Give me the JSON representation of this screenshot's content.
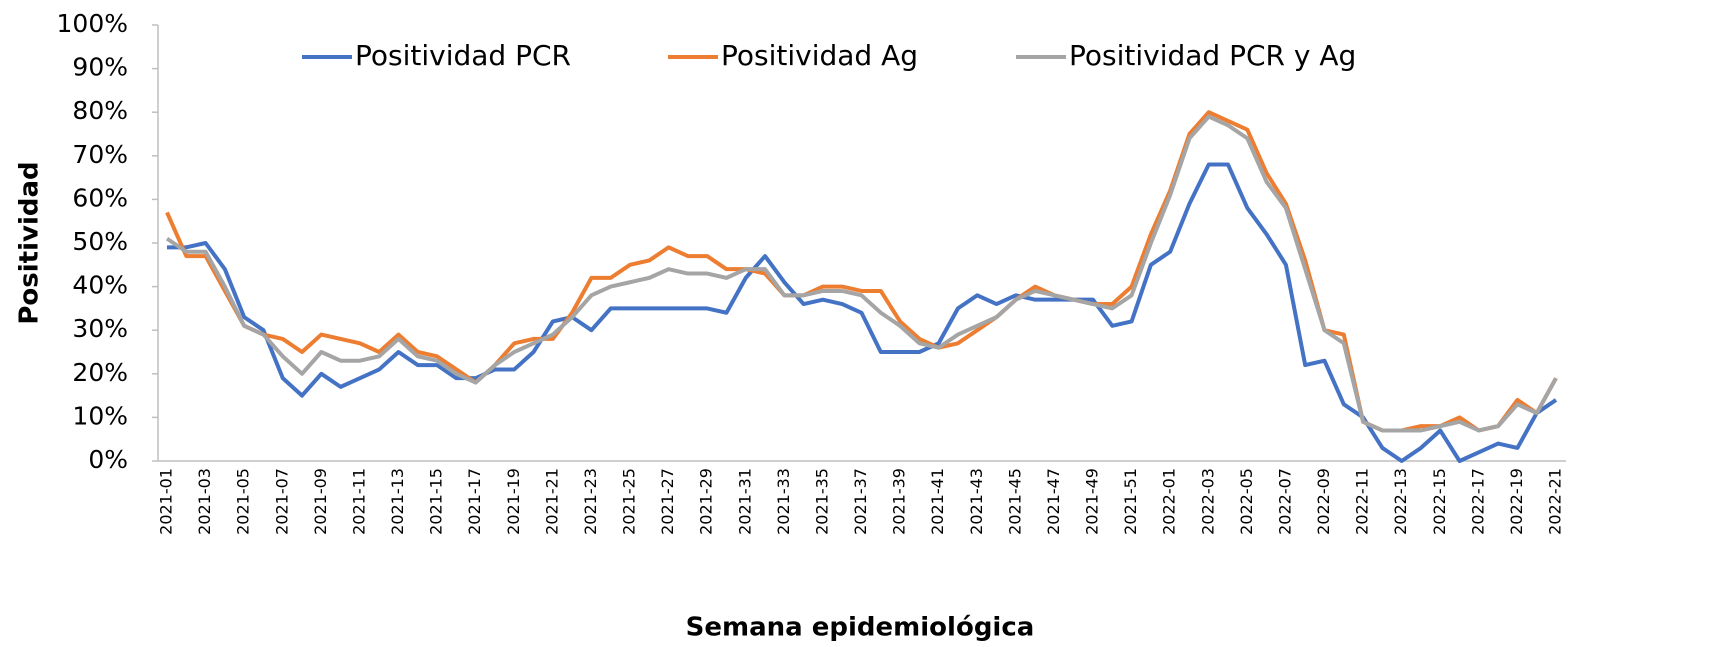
{
  "chart_data": {
    "type": "line",
    "x_label": "Semana epidemiológica",
    "y_label": "Positividad",
    "categories": [
      "2021-01",
      null,
      "2021-03",
      null,
      "2021-05",
      null,
      "2021-07",
      null,
      "2021-09",
      null,
      "2021-11",
      null,
      "2021-13",
      null,
      "2021-15",
      null,
      "2021-17",
      null,
      "2021-19",
      null,
      "2021-21",
      null,
      "2021-23",
      null,
      "2021-25",
      null,
      "2021-27",
      null,
      "2021-29",
      null,
      "2021-31",
      null,
      "2021-33",
      null,
      "2021-35",
      null,
      "2021-37",
      null,
      "2021-39",
      null,
      "2021-41",
      null,
      "2021-43",
      null,
      "2021-45",
      null,
      "2021-47",
      null,
      "2021-49",
      null,
      "2021-51",
      null,
      "2022-01",
      null,
      "2022-03",
      null,
      "2022-05",
      null,
      "2022-07",
      null,
      "2022-09",
      null,
      "2022-11",
      null,
      "2022-13",
      null,
      "2022-15",
      null,
      "2022-17",
      null,
      "2022-19",
      null,
      "2022-21"
    ],
    "series": [
      {
        "name": "Positividad PCR",
        "color": "#4472c4",
        "values": [
          49,
          49,
          50,
          44,
          33,
          30,
          19,
          15,
          20,
          17,
          19,
          21,
          25,
          22,
          22,
          19,
          19,
          21,
          21,
          25,
          32,
          33,
          30,
          35,
          35,
          35,
          35,
          35,
          35,
          34,
          42,
          47,
          41,
          36,
          37,
          36,
          34,
          25,
          25,
          25,
          27,
          35,
          38,
          36,
          38,
          37,
          37,
          37,
          37,
          31,
          32,
          45,
          48,
          59,
          68,
          68,
          58,
          52,
          45,
          22,
          23,
          13,
          10,
          3,
          0,
          3,
          7,
          0,
          2,
          4,
          3,
          11,
          14
        ]
      },
      {
        "name": "Positividad Ag",
        "color": "#ed7d31",
        "values": [
          57,
          47,
          47,
          39,
          31,
          29,
          28,
          25,
          29,
          28,
          27,
          25,
          29,
          25,
          24,
          21,
          18,
          22,
          27,
          28,
          28,
          34,
          42,
          42,
          45,
          46,
          49,
          47,
          47,
          44,
          44,
          43,
          38,
          38,
          40,
          40,
          39,
          39,
          32,
          28,
          26,
          27,
          30,
          33,
          37,
          40,
          38,
          37,
          36,
          36,
          40,
          52,
          62,
          75,
          80,
          78,
          76,
          66,
          59,
          46,
          30,
          29,
          9,
          7,
          7,
          8,
          8,
          10,
          7,
          8,
          14,
          11,
          19
        ]
      },
      {
        "name": "Positividad PCR y Ag",
        "color": "#a5a5a5",
        "values": [
          51,
          48,
          48,
          40,
          31,
          29,
          24,
          20,
          25,
          23,
          23,
          24,
          28,
          24,
          23,
          20,
          18,
          22,
          25,
          27,
          29,
          33,
          38,
          40,
          41,
          42,
          44,
          43,
          43,
          42,
          44,
          44,
          38,
          38,
          39,
          39,
          38,
          34,
          31,
          27,
          26,
          29,
          31,
          33,
          37,
          39,
          38,
          37,
          36,
          35,
          38,
          50,
          61,
          74,
          79,
          77,
          74,
          64,
          58,
          44,
          30,
          27,
          9,
          7,
          7,
          7,
          8,
          9,
          7,
          8,
          13,
          11,
          19
        ]
      }
    ],
    "ylim": [
      0,
      100
    ],
    "yticks": [
      {
        "value": 0,
        "label": "0%"
      },
      {
        "value": 10,
        "label": "10%"
      },
      {
        "value": 20,
        "label": "20%"
      },
      {
        "value": 30,
        "label": "30%"
      },
      {
        "value": 40,
        "label": "40%"
      },
      {
        "value": 50,
        "label": "50%"
      },
      {
        "value": 60,
        "label": "60%"
      },
      {
        "value": 70,
        "label": "70%"
      },
      {
        "value": 80,
        "label": "80%"
      },
      {
        "value": 90,
        "label": "90%"
      },
      {
        "value": 100,
        "label": "100%"
      }
    ],
    "legend": "top"
  }
}
